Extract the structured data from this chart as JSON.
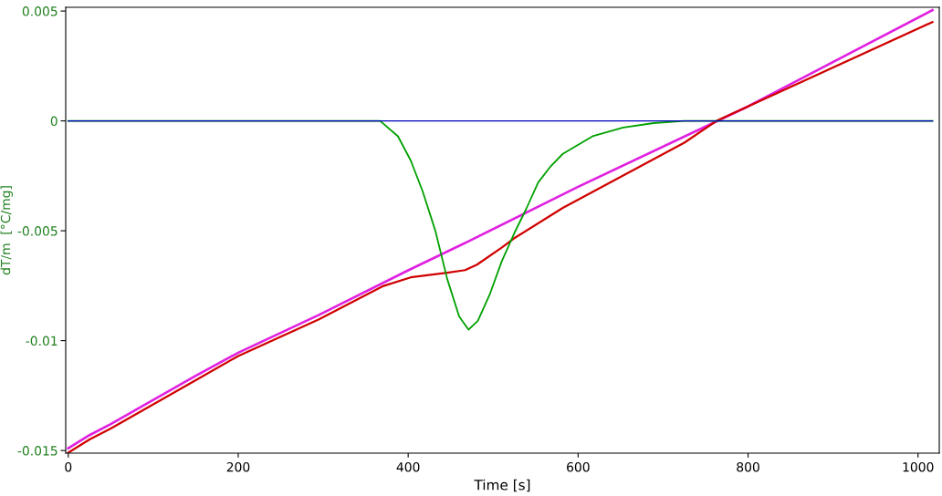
{
  "chart_data": {
    "type": "line",
    "xlabel": "Time [s]",
    "ylabel": "dT/m  [°C/mg]",
    "xlim": [
      -3,
      1025
    ],
    "ylim": [
      -0.01512,
      0.00517
    ],
    "xticks": [
      0,
      200,
      400,
      600,
      800,
      1000
    ],
    "yticks": [
      {
        "value": 0.005,
        "label": "0.005"
      },
      {
        "value": 0,
        "label": "0"
      },
      {
        "value": -0.005,
        "label": "-0.005"
      },
      {
        "value": -0.01,
        "label": "-0.01"
      },
      {
        "value": -0.015,
        "label": "-0.015"
      }
    ],
    "grid": false,
    "legend": false,
    "marker": "none",
    "line_style": "solid",
    "series": [
      {
        "color": "#e020e0",
        "x": [
          0,
          25,
          50,
          100,
          150,
          200,
          295,
          400,
          470,
          600,
          800,
          1017
        ],
        "values": [
          -0.0149,
          -0.0143,
          -0.0138,
          -0.0127,
          -0.0116,
          -0.01055,
          -0.00883,
          -0.0068,
          -0.0055,
          -0.003,
          0.00066,
          0.00504
        ]
      },
      {
        "color": "#d00000",
        "x": [
          0,
          25,
          50,
          100,
          150,
          200,
          295,
          371,
          403,
          446,
          467,
          481,
          510,
          524,
          582,
          725,
          763,
          1017
        ],
        "values": [
          -0.0151,
          -0.0145,
          -0.014,
          -0.0129,
          -0.0118,
          -0.0107,
          -0.00903,
          -0.00751,
          -0.00712,
          -0.00691,
          -0.00679,
          -0.00654,
          -0.00577,
          -0.00536,
          -0.00396,
          -0.00099,
          0.0,
          0.0045
        ]
      },
      {
        "color": "#00a000",
        "x": [
          0,
          349,
          367,
          388,
          403,
          417,
          432,
          446,
          460,
          471,
          482,
          496,
          510,
          525,
          539,
          553,
          567,
          582,
          617,
          653,
          689,
          725,
          1017
        ],
        "values": [
          0.0,
          0.0,
          0.0,
          -0.0007,
          -0.0018,
          -0.0032,
          -0.005,
          -0.0072,
          -0.0089,
          -0.0095,
          -0.0091,
          -0.0079,
          -0.0064,
          -0.0051,
          -0.004,
          -0.0028,
          -0.0021,
          -0.0015,
          -0.0007,
          -0.0003,
          -0.0001,
          0.0,
          0.0
        ]
      },
      {
        "color": "#0000c0",
        "x": [
          0,
          1017
        ],
        "values": [
          0.0,
          0.0
        ]
      }
    ]
  }
}
